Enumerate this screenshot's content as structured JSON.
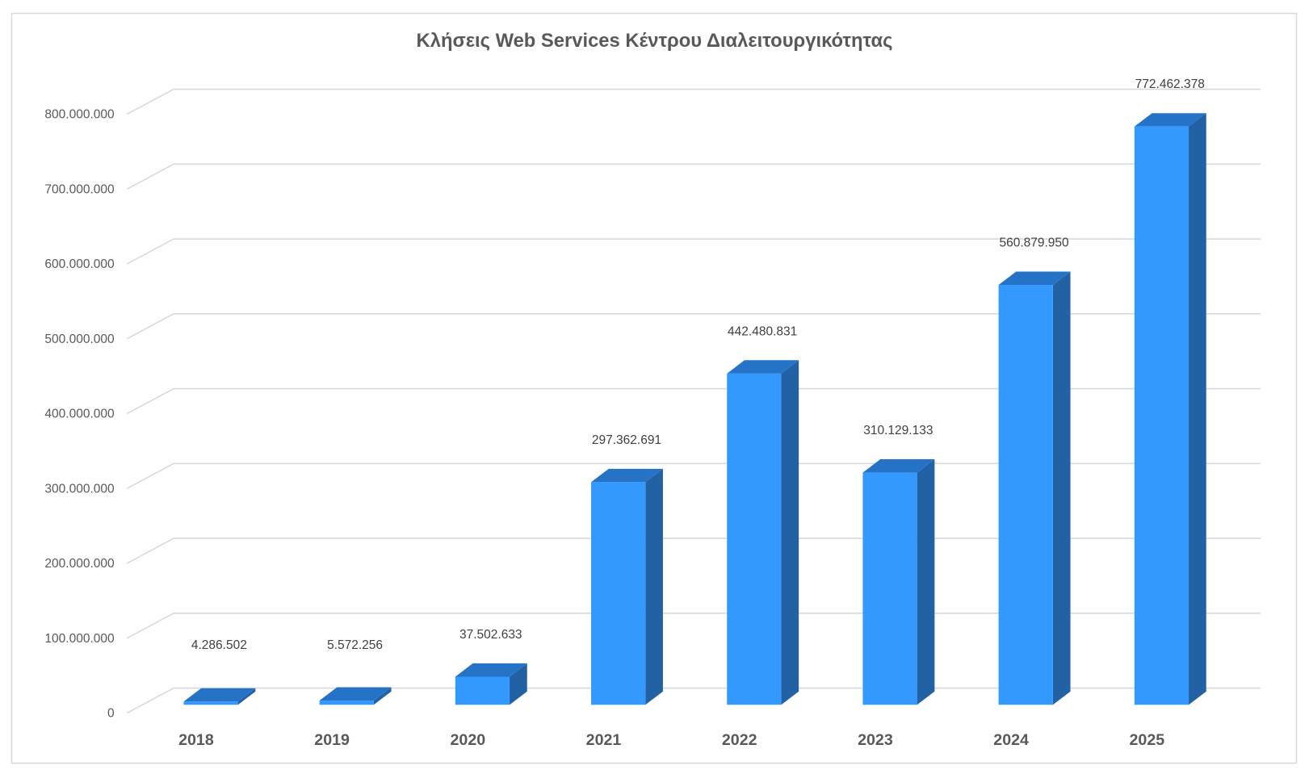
{
  "chart_data": {
    "type": "bar",
    "title": "Κλήσεις Web Services Κέντρου Διαλειτουργικότητας",
    "xlabel": "",
    "ylabel": "",
    "categories": [
      "2018",
      "2019",
      "2020",
      "2021",
      "2022",
      "2023",
      "2024",
      "2025"
    ],
    "values": [
      4286502,
      5572256,
      37502633,
      297362691,
      442480831,
      310129133,
      560879950,
      772462378
    ],
    "data_labels": [
      "4.286.502",
      "5.572.256",
      "37.502.633",
      "297.362.691",
      "442.480.831",
      "310.129.133",
      "560.879.950",
      "772.462.378"
    ],
    "ylim": [
      0,
      800000000
    ],
    "y_ticks": [
      0,
      100000000,
      200000000,
      300000000,
      400000000,
      500000000,
      600000000,
      700000000,
      800000000
    ],
    "y_tick_labels": [
      "0",
      "100.000.000",
      "200.000.000",
      "300.000.000",
      "400.000.000",
      "500.000.000",
      "600.000.000",
      "700.000.000",
      "800.000.000"
    ],
    "grid": true,
    "legend": "none",
    "style": "3d-column",
    "colors": {
      "front": "#3399FF",
      "side": "#2262A4",
      "top": "#2573C6",
      "grid": "#D9D9D9",
      "text": "#595959"
    }
  }
}
